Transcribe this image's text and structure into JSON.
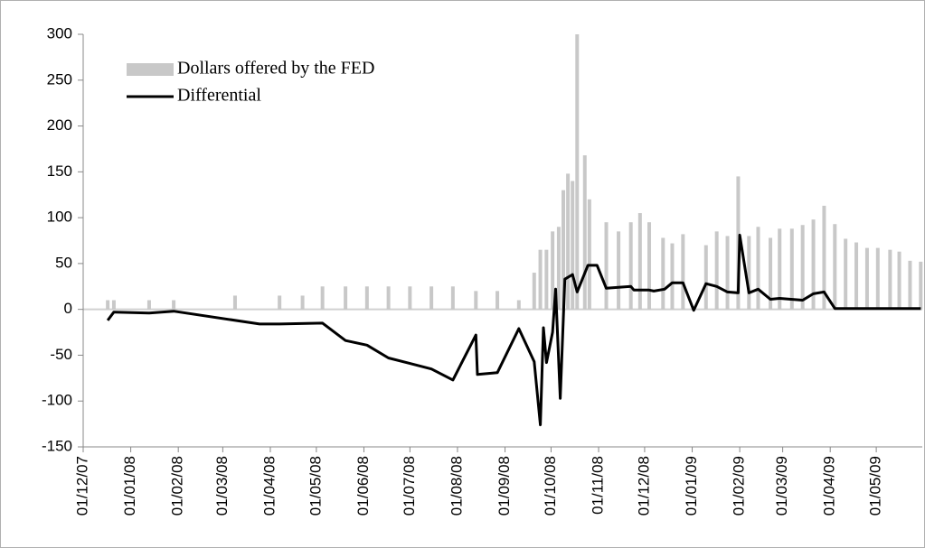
{
  "chart_data": {
    "type": "combo",
    "xlim": [
      "2007-12-01",
      "2009-05-31"
    ],
    "xticks": [
      {
        "value": "2007-12-01",
        "label": "01/12/07"
      },
      {
        "value": "2008-01-01",
        "label": "01/01/08"
      },
      {
        "value": "2008-02-01",
        "label": "01/02/08"
      },
      {
        "value": "2008-03-01",
        "label": "01/03/08"
      },
      {
        "value": "2008-04-01",
        "label": "01/04/08"
      },
      {
        "value": "2008-05-01",
        "label": "01/05/08"
      },
      {
        "value": "2008-06-01",
        "label": "01/06/08"
      },
      {
        "value": "2008-07-01",
        "label": "01/07/08"
      },
      {
        "value": "2008-08-01",
        "label": "01/08/08"
      },
      {
        "value": "2008-09-01",
        "label": "01/09/08"
      },
      {
        "value": "2008-10-01",
        "label": "01/10/08"
      },
      {
        "value": "2008-11-01",
        "label": "01/11/08"
      },
      {
        "value": "2008-12-01",
        "label": "01/12/08"
      },
      {
        "value": "2009-01-01",
        "label": "01/01/09"
      },
      {
        "value": "2009-02-01",
        "label": "01/02/09"
      },
      {
        "value": "2009-03-01",
        "label": "01/03/09"
      },
      {
        "value": "2009-04-01",
        "label": "01/04/09"
      },
      {
        "value": "2009-05-01",
        "label": "01/05/09"
      }
    ],
    "ylim": [
      -150,
      300
    ],
    "yticks": [
      -150,
      -100,
      -50,
      0,
      50,
      100,
      150,
      200,
      250,
      300
    ],
    "series": [
      {
        "name": "Dollars offered by the FED",
        "type": "bar",
        "color": "#c8c8c8",
        "x": [
          "2007-12-17",
          "2007-12-21",
          "2008-01-13",
          "2008-01-29",
          "2008-03-09",
          "2008-04-07",
          "2008-04-22",
          "2008-05-05",
          "2008-05-20",
          "2008-06-03",
          "2008-06-17",
          "2008-07-01",
          "2008-07-15",
          "2008-07-29",
          "2008-08-13",
          "2008-08-27",
          "2008-09-10",
          "2008-09-20",
          "2008-09-24",
          "2008-09-28",
          "2008-10-02",
          "2008-10-06",
          "2008-10-09",
          "2008-10-12",
          "2008-10-15",
          "2008-10-18",
          "2008-10-23",
          "2008-10-26",
          "2008-11-06",
          "2008-11-14",
          "2008-11-22",
          "2008-11-28",
          "2008-12-04",
          "2008-12-13",
          "2008-12-19",
          "2008-12-26",
          "2009-01-10",
          "2009-01-17",
          "2009-01-24",
          "2009-01-31",
          "2009-02-07",
          "2009-02-13",
          "2009-02-21",
          "2009-02-27",
          "2009-03-07",
          "2009-03-14",
          "2009-03-21",
          "2009-03-28",
          "2009-04-04",
          "2009-04-11",
          "2009-04-18",
          "2009-04-25",
          "2009-05-02",
          "2009-05-10",
          "2009-05-16",
          "2009-05-23",
          "2009-05-30"
        ],
        "values": [
          10,
          10,
          10,
          10,
          15,
          15,
          15,
          25,
          25,
          25,
          25,
          25,
          25,
          25,
          20,
          20,
          10,
          40,
          65,
          65,
          85,
          90,
          130,
          148,
          140,
          300,
          168,
          120,
          95,
          85,
          95,
          105,
          95,
          78,
          72,
          82,
          70,
          85,
          80,
          145,
          80,
          90,
          78,
          88,
          88,
          92,
          98,
          113,
          93,
          77,
          73,
          67,
          67,
          65,
          63,
          53,
          52
        ]
      },
      {
        "name": "Differential",
        "type": "line",
        "color": "#000000",
        "x": [
          "2007-12-17",
          "2007-12-21",
          "2008-01-13",
          "2008-01-29",
          "2008-03-25",
          "2008-04-07",
          "2008-05-05",
          "2008-05-20",
          "2008-06-03",
          "2008-06-17",
          "2008-07-01",
          "2008-07-15",
          "2008-07-29",
          "2008-08-13",
          "2008-08-14",
          "2008-08-27",
          "2008-09-10",
          "2008-09-20",
          "2008-09-24",
          "2008-09-26",
          "2008-09-28",
          "2008-10-02",
          "2008-10-04",
          "2008-10-07",
          "2008-10-10",
          "2008-10-15",
          "2008-10-18",
          "2008-10-25",
          "2008-10-31",
          "2008-11-06",
          "2008-11-22",
          "2008-11-24",
          "2008-12-04",
          "2008-12-07",
          "2008-12-14",
          "2008-12-19",
          "2008-12-26",
          "2009-01-02",
          "2009-01-10",
          "2009-01-17",
          "2009-01-24",
          "2009-01-31",
          "2009-02-01",
          "2009-02-07",
          "2009-02-13",
          "2009-02-21",
          "2009-02-27",
          "2009-03-14",
          "2009-03-21",
          "2009-03-28",
          "2009-04-04",
          "2009-05-30"
        ],
        "values": [
          -12,
          -3,
          -4,
          -2,
          -16,
          -16,
          -15,
          -34,
          -39,
          -53,
          -59,
          -65,
          -77,
          -28,
          -71,
          -69,
          -21,
          -57,
          -126,
          -20,
          -58,
          -25,
          22,
          -97,
          33,
          38,
          19,
          48,
          48,
          23,
          25,
          21,
          21,
          20,
          22,
          29,
          29,
          -1,
          28,
          25,
          19,
          18,
          81,
          18,
          22,
          11,
          12,
          10,
          17,
          19,
          1,
          1
        ]
      }
    ]
  }
}
